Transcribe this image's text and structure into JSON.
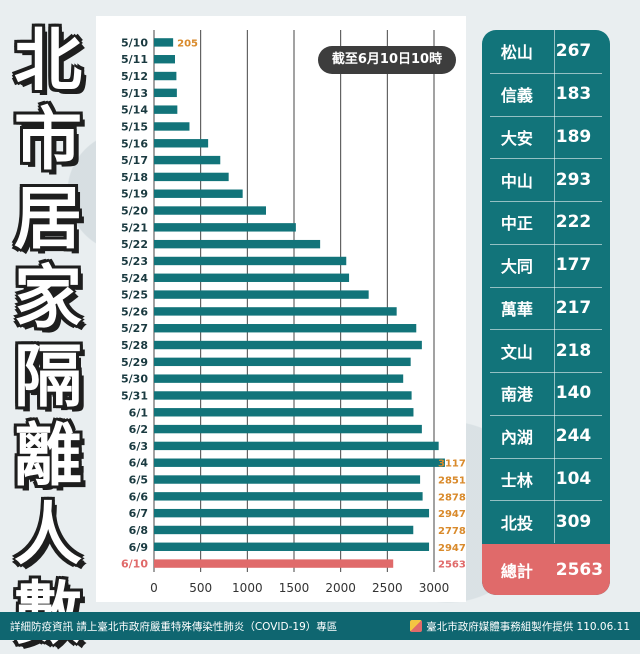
{
  "title_chars": [
    "北",
    "市",
    "居",
    "家",
    "隔",
    "離",
    "人",
    "數"
  ],
  "as_of": "截至6月10日10時",
  "colors": {
    "bar": "#12747a",
    "highlight": "#e06a6a",
    "label_orange": "#d98a2b"
  },
  "districts": [
    {
      "name": "松山",
      "value": "267"
    },
    {
      "name": "信義",
      "value": "183"
    },
    {
      "name": "大安",
      "value": "189"
    },
    {
      "name": "中山",
      "value": "293"
    },
    {
      "name": "中正",
      "value": "222"
    },
    {
      "name": "大同",
      "value": "177"
    },
    {
      "name": "萬華",
      "value": "217"
    },
    {
      "name": "文山",
      "value": "218"
    },
    {
      "name": "南港",
      "value": "140"
    },
    {
      "name": "內湖",
      "value": "244"
    },
    {
      "name": "士林",
      "value": "104"
    },
    {
      "name": "北投",
      "value": "309"
    }
  ],
  "total": {
    "name": "總計",
    "value": "2563"
  },
  "footer": {
    "left": "詳細防疫資訊 請上臺北市政府嚴重特殊傳染性肺炎（COVID-19）專區",
    "right": "臺北市政府媒體事務組製作提供 110.06.11"
  },
  "chart_data": {
    "type": "bar",
    "orientation": "horizontal",
    "title": "北市居家隔離人數",
    "subtitle": "截至6月10日10時",
    "categories": [
      "5/10",
      "5/11",
      "5/12",
      "5/13",
      "5/14",
      "5/15",
      "5/16",
      "5/17",
      "5/18",
      "5/19",
      "5/20",
      "5/21",
      "5/22",
      "5/23",
      "5/24",
      "5/25",
      "5/26",
      "5/27",
      "5/28",
      "5/29",
      "5/30",
      "5/31",
      "6/1",
      "6/2",
      "6/3",
      "6/4",
      "6/5",
      "6/6",
      "6/7",
      "6/8",
      "6/9",
      "6/10"
    ],
    "values": [
      205,
      225,
      240,
      245,
      250,
      380,
      580,
      710,
      800,
      950,
      1200,
      1520,
      1780,
      2060,
      2090,
      2300,
      2600,
      2810,
      2870,
      2750,
      2670,
      2760,
      2780,
      2870,
      3050,
      3117,
      2851,
      2878,
      2947,
      2778,
      2947,
      2563
    ],
    "data_labels": {
      "5/10": "205",
      "6/4": "3117",
      "6/5": "2851",
      "6/6": "2878",
      "6/7": "2947",
      "6/8": "2778",
      "6/9": "2947",
      "6/10": "2563"
    },
    "xlim": [
      0,
      3000
    ],
    "xticks": [
      "0",
      "500",
      "1000",
      "1500",
      "2000",
      "2500",
      "3000"
    ],
    "grid": true,
    "highlight_category": "6/10"
  }
}
